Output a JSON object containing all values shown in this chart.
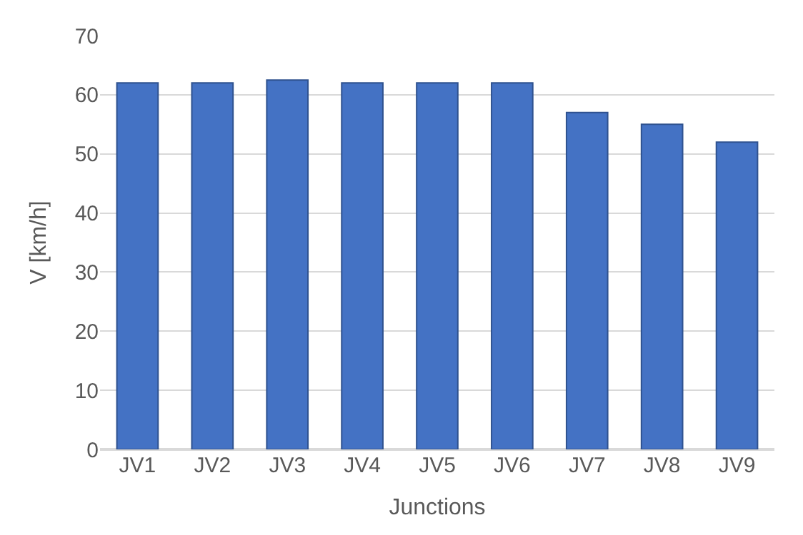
{
  "chart_data": {
    "type": "bar",
    "xlabel": "Junctions",
    "ylabel": "V [km/h]",
    "categories": [
      "JV1",
      "JV2",
      "JV3",
      "JV4",
      "JV5",
      "JV6",
      "JV7",
      "JV8",
      "JV9"
    ],
    "values": [
      62,
      62,
      62.5,
      62,
      62,
      62,
      57,
      55,
      52
    ],
    "color": "#4472c4",
    "ylim": [
      0,
      70
    ],
    "yticks": [
      0,
      10,
      20,
      30,
      40,
      50,
      60,
      70
    ],
    "grid": "y"
  }
}
